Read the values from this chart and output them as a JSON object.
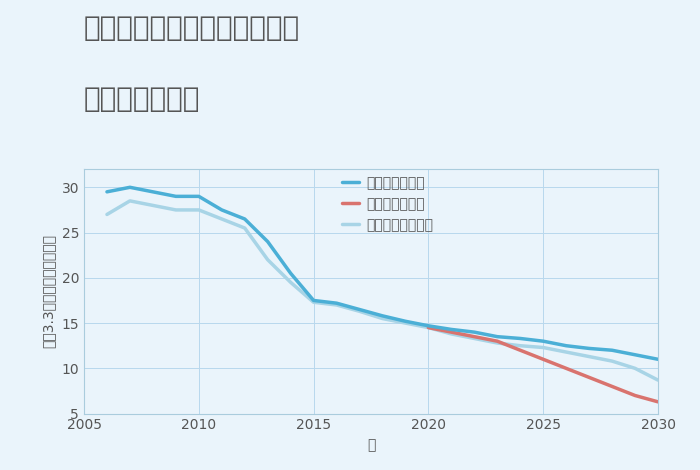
{
  "title_line1": "三重県伊賀市上野東日南町の",
  "title_line2": "土地の価格推移",
  "xlabel": "年",
  "ylabel_top": "単価（万円）",
  "ylabel_bottom": "平（3.3㎡）",
  "xlim": [
    2005,
    2030
  ],
  "ylim": [
    5,
    32
  ],
  "yticks": [
    5,
    10,
    15,
    20,
    25,
    30
  ],
  "xticks": [
    2005,
    2010,
    2015,
    2020,
    2025,
    2030
  ],
  "fig_bg_color": "#eaf4fb",
  "plot_bg_color": "#eaf4fb",
  "grid_color": "#b8d8ed",
  "series": {
    "good": {
      "label": "グッドシナリオ",
      "color": "#4bafd6",
      "linewidth": 2.5,
      "years": [
        2006,
        2007,
        2008,
        2009,
        2010,
        2011,
        2012,
        2013,
        2014,
        2015,
        2016,
        2017,
        2018,
        2019,
        2020,
        2021,
        2022,
        2023,
        2024,
        2025,
        2026,
        2027,
        2028,
        2029,
        2030
      ],
      "values": [
        29.5,
        30.0,
        29.5,
        29.0,
        29.0,
        27.5,
        26.5,
        24.0,
        20.5,
        17.5,
        17.2,
        16.5,
        15.8,
        15.2,
        14.7,
        14.3,
        14.0,
        13.5,
        13.3,
        13.0,
        12.5,
        12.2,
        12.0,
        11.5,
        11.0
      ]
    },
    "bad": {
      "label": "バッドシナリオ",
      "color": "#d9736e",
      "linewidth": 2.5,
      "years": [
        2020,
        2021,
        2022,
        2023,
        2024,
        2025,
        2026,
        2027,
        2028,
        2029,
        2030
      ],
      "values": [
        14.5,
        14.0,
        13.5,
        13.0,
        12.0,
        11.0,
        10.0,
        9.0,
        8.0,
        7.0,
        6.3
      ]
    },
    "normal": {
      "label": "ノーマルシナリオ",
      "color": "#a8d4e6",
      "linewidth": 2.5,
      "years": [
        2006,
        2007,
        2008,
        2009,
        2010,
        2011,
        2012,
        2013,
        2014,
        2015,
        2016,
        2017,
        2018,
        2019,
        2020,
        2021,
        2022,
        2023,
        2024,
        2025,
        2026,
        2027,
        2028,
        2029,
        2030
      ],
      "values": [
        27.0,
        28.5,
        28.0,
        27.5,
        27.5,
        26.5,
        25.5,
        22.0,
        19.5,
        17.3,
        17.0,
        16.3,
        15.5,
        15.0,
        14.5,
        13.8,
        13.3,
        12.8,
        12.5,
        12.3,
        11.8,
        11.3,
        10.8,
        10.0,
        8.7
      ]
    }
  },
  "title_fontsize": 20,
  "axis_label_fontsize": 10,
  "tick_fontsize": 10,
  "legend_fontsize": 10,
  "title_color": "#555555",
  "tick_color": "#555555",
  "axis_color": "#aaccdd"
}
